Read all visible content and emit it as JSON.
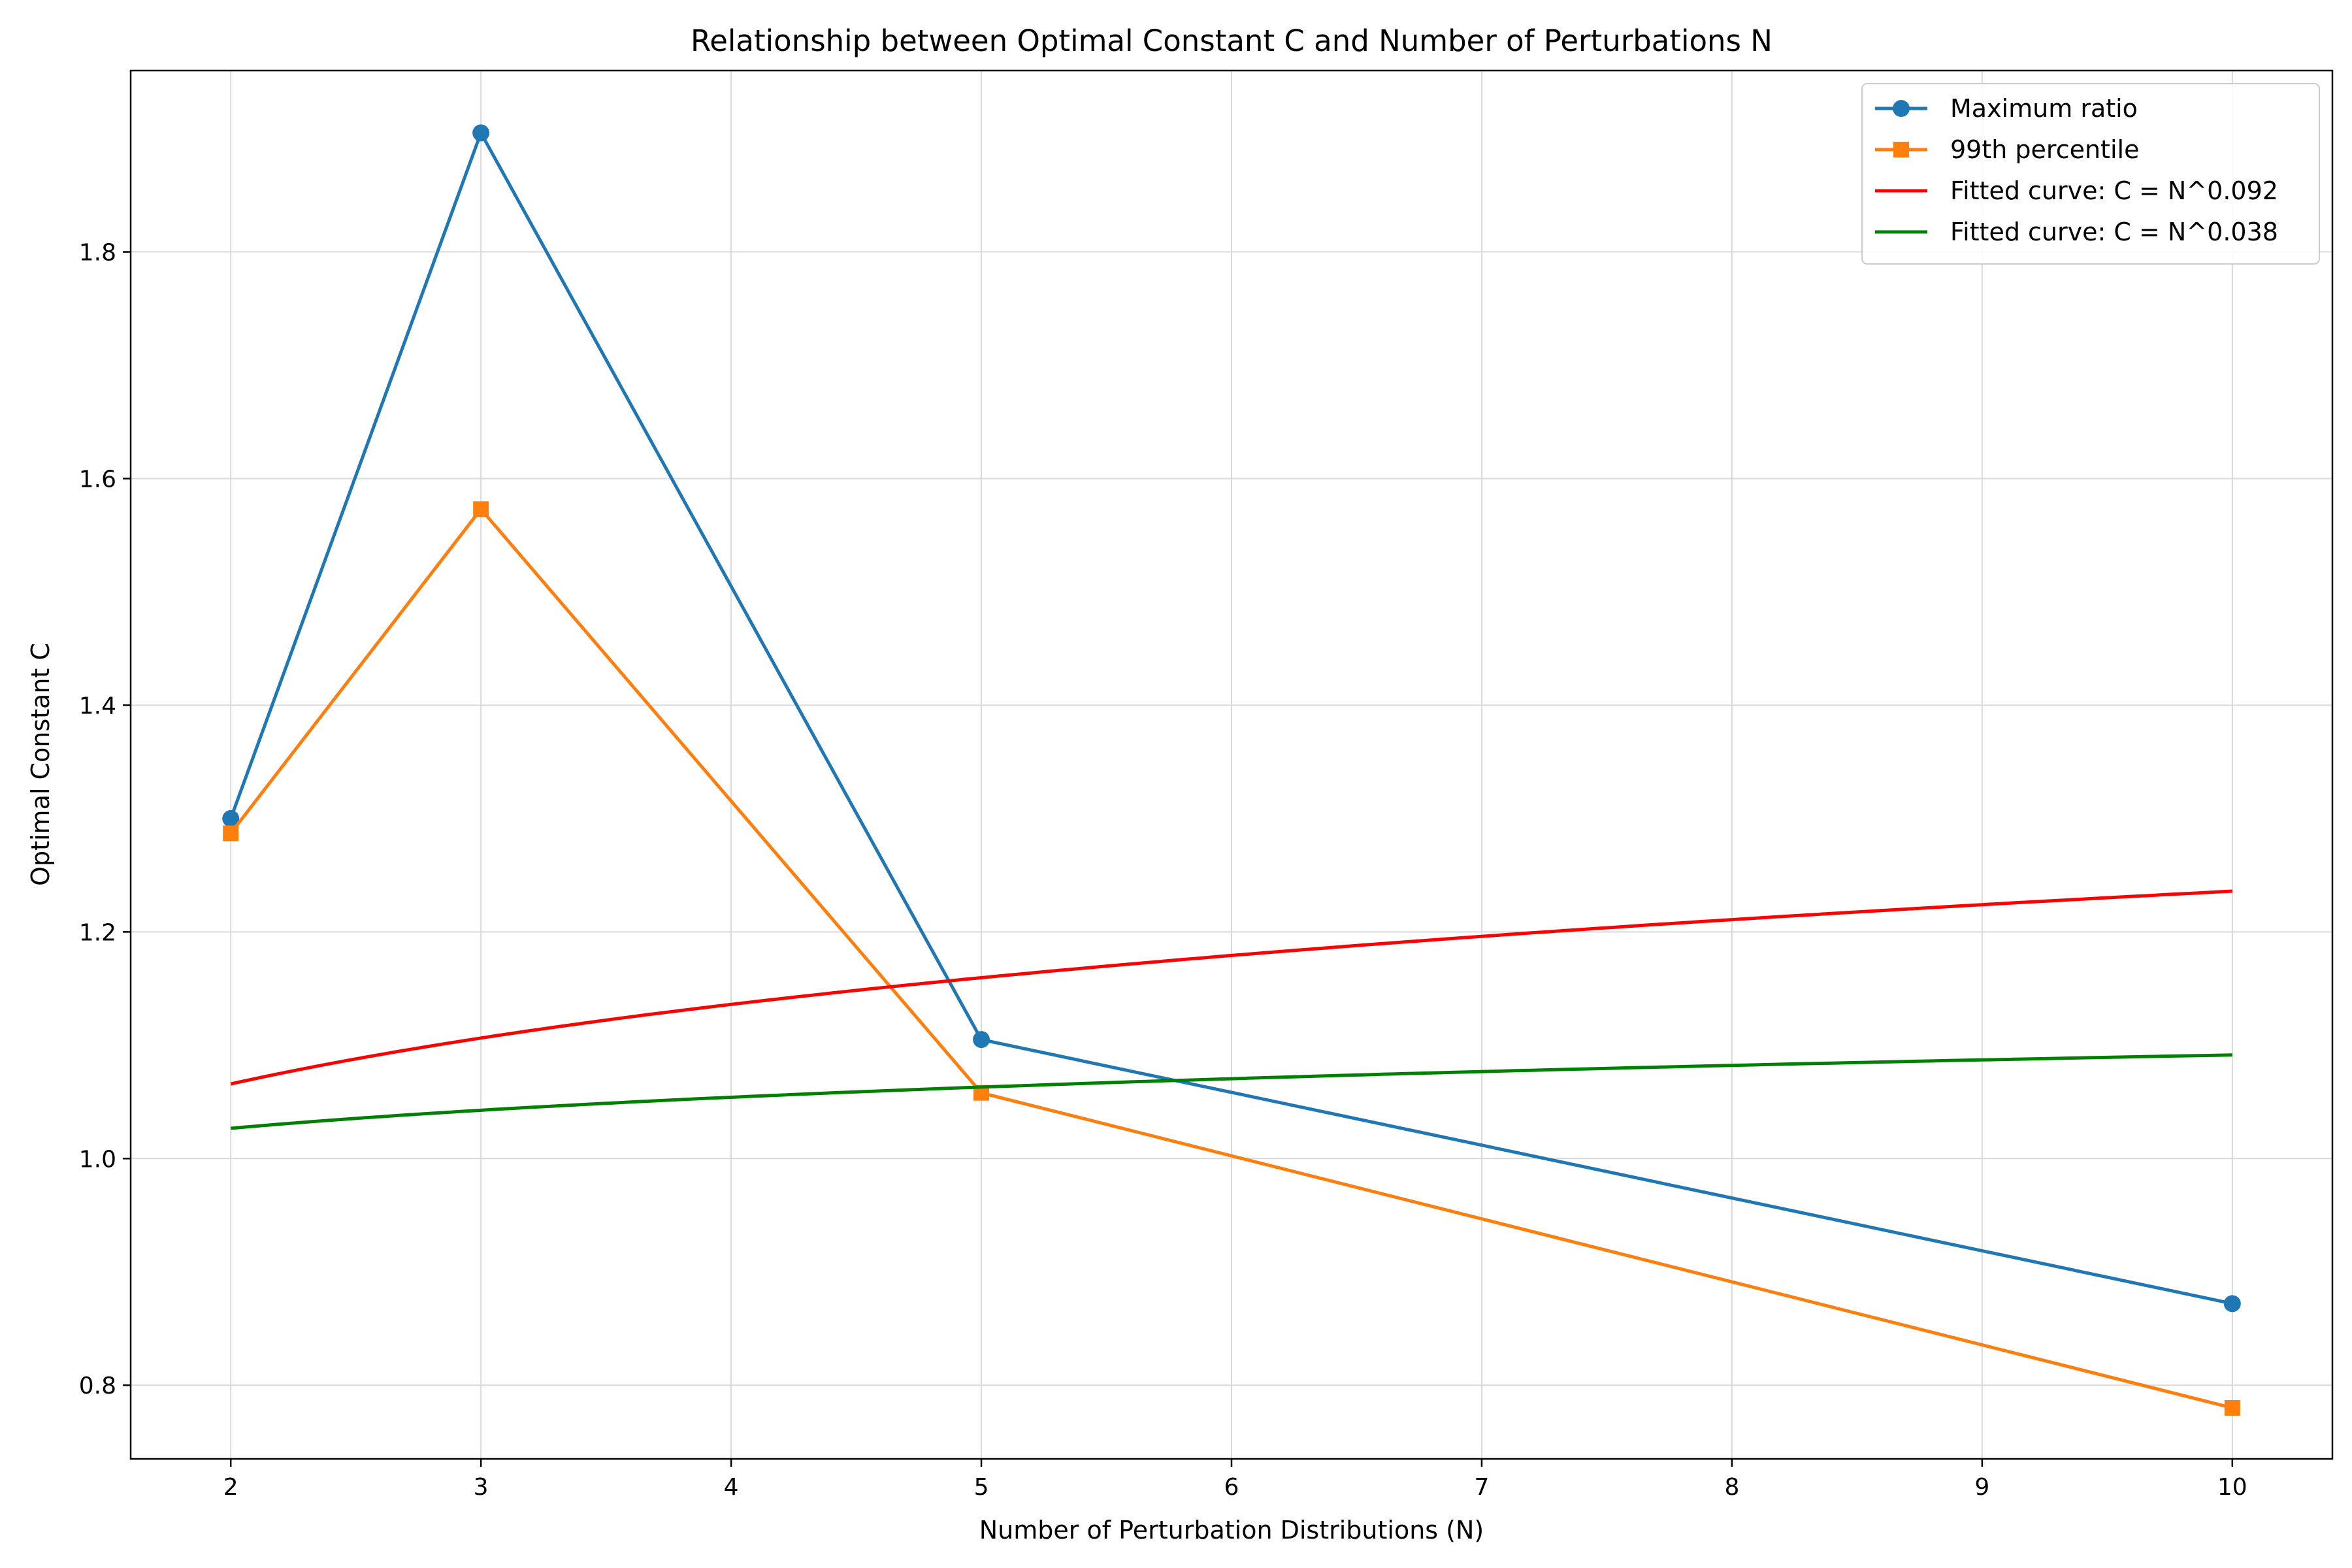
{
  "chart_data": {
    "type": "line",
    "title": "Relationship between Optimal Constant C and Number of Perturbations N",
    "xlabel": "Number of Perturbation Distributions (N)",
    "ylabel": "Optimal Constant C",
    "xlim": [
      1.6,
      10.4
    ],
    "ylim": [
      0.735,
      1.96
    ],
    "xticks": [
      2,
      3,
      4,
      5,
      6,
      7,
      8,
      9,
      10
    ],
    "yticks": [
      0.8,
      1.0,
      1.2,
      1.4,
      1.6,
      1.8
    ],
    "ytick_labels": [
      "0.8",
      "1.0",
      "1.2",
      "1.4",
      "1.6",
      "1.8"
    ],
    "grid": true,
    "legend_position": "top-right",
    "series": [
      {
        "name": "Maximum ratio",
        "kind": "line-marker",
        "marker": "circle",
        "color": "#1f77b4",
        "x": [
          2,
          3,
          5,
          10
        ],
        "y": [
          1.3,
          1.905,
          1.105,
          0.872
        ]
      },
      {
        "name": "99th percentile",
        "kind": "line-marker",
        "marker": "square",
        "color": "#ff7f0e",
        "x": [
          2,
          3,
          5,
          10
        ],
        "y": [
          1.287,
          1.573,
          1.058,
          0.78
        ]
      },
      {
        "name": "Fitted curve: C = N^0.092",
        "kind": "curve",
        "exponent": 0.092,
        "color": "#ff0000",
        "x_range": [
          2,
          10
        ]
      },
      {
        "name": "Fitted curve: C = N^0.038",
        "kind": "curve",
        "exponent": 0.038,
        "color": "#008000",
        "x_range": [
          2,
          10
        ]
      }
    ]
  }
}
